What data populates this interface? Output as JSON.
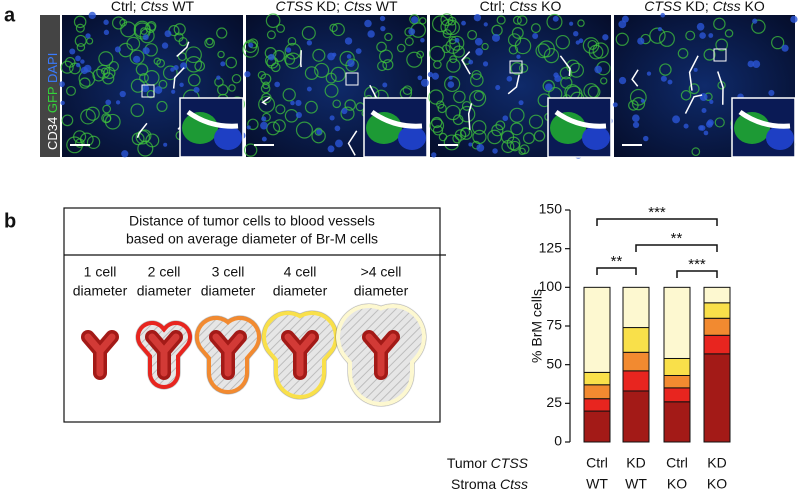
{
  "panel_a": {
    "letter": "a",
    "stain": [
      {
        "text": "CD34",
        "color": "#ffffff"
      },
      {
        "text": "GFP",
        "color": "#34d33a"
      },
      {
        "text": "DAPI",
        "color": "#3a7bff"
      }
    ],
    "images": [
      {
        "label": [
          {
            "text": "Ctrl; "
          },
          {
            "text": "Ctss",
            "italic": true
          },
          {
            "text": " WT"
          }
        ]
      },
      {
        "label": [
          {
            "text": "CTSS",
            "italic": true
          },
          {
            "text": " KD; "
          },
          {
            "text": "Ctss",
            "italic": true
          },
          {
            "text": " WT"
          }
        ]
      },
      {
        "label": [
          {
            "text": "Ctrl; "
          },
          {
            "text": "Ctss",
            "italic": true
          },
          {
            "text": " KO"
          }
        ]
      },
      {
        "label": [
          {
            "text": "CTSS",
            "italic": true
          },
          {
            "text": " KD; "
          },
          {
            "text": "Ctss",
            "italic": true
          },
          {
            "text": " KO"
          }
        ]
      }
    ]
  },
  "panel_b": {
    "letter": "b",
    "diagram": {
      "title": [
        "Distance of tumor cells to blood vessels",
        "based on average diameter of Br-M cells"
      ],
      "columns": [
        [
          "1 cell",
          "diameter"
        ],
        [
          "2 cell",
          "diameter"
        ],
        [
          "3 cell",
          "diameter"
        ],
        [
          "4 cell",
          "diameter"
        ],
        [
          ">4 cell",
          "diameter"
        ]
      ]
    }
  },
  "chart_data": {
    "type": "stacked_bar",
    "y_label": "% BrM cells",
    "ylim": [
      0,
      150
    ],
    "yticks": [
      0,
      25,
      50,
      75,
      100,
      125,
      150
    ],
    "row_labels": [
      {
        "text": "Tumor ",
        "italic": "CTSS"
      },
      {
        "text": "Stroma ",
        "italic": "Ctss"
      }
    ],
    "categories": [
      "Ctrl",
      "KD",
      "Ctrl",
      "KD"
    ],
    "categories2": [
      "WT",
      "WT",
      "KO",
      "KO"
    ],
    "series": [
      {
        "color": "#a31a17",
        "values": [
          20,
          33,
          26,
          57
        ]
      },
      {
        "color": "#e8251f",
        "values": [
          8,
          13,
          9,
          12
        ]
      },
      {
        "color": "#f28a30",
        "values": [
          9,
          12,
          8,
          11
        ]
      },
      {
        "color": "#f9e04a",
        "values": [
          8,
          16,
          11,
          10
        ]
      },
      {
        "color": "#fdf8d0",
        "values": [
          55,
          26,
          46,
          10
        ]
      }
    ],
    "brackets": [
      {
        "label": "**",
        "between": [
          0,
          1
        ]
      },
      {
        "label": "**",
        "between": [
          1,
          3
        ]
      },
      {
        "label": "***",
        "between": [
          2,
          3
        ]
      },
      {
        "label": "***",
        "between": [
          0,
          3
        ]
      }
    ]
  }
}
